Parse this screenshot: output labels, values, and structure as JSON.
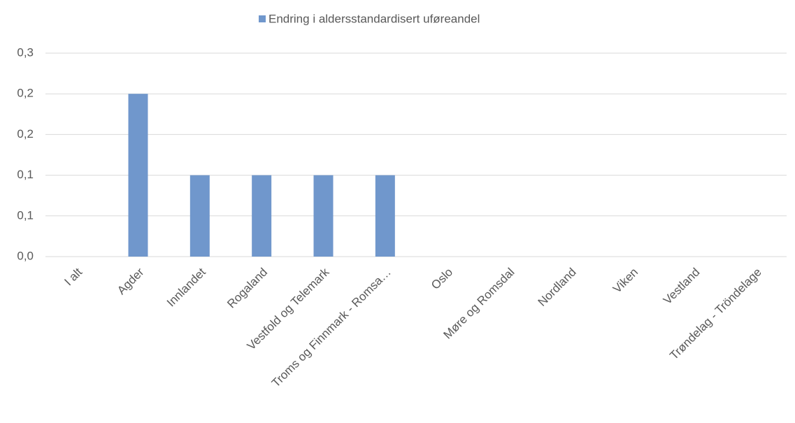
{
  "chart_data": {
    "type": "bar",
    "categories": [
      "I alt",
      "Agder",
      "Innlandet",
      "Rogaland",
      "Vestfold og Telemark",
      "Troms og Finnmark - Romsa…",
      "Oslo",
      "Møre og Romsdal",
      "Nordland",
      "Viken",
      "Vestland",
      "Trøndelag - Tröndelage"
    ],
    "series": [
      {
        "name": "Endring i aldersstandardisert uføreandel",
        "color": "#7097cc",
        "values": [
          0,
          0.2,
          0.1,
          0.1,
          0.1,
          0.1,
          0,
          0,
          0,
          0,
          0,
          0
        ]
      }
    ],
    "ylim": [
      0,
      0.25
    ],
    "yticks": [
      {
        "value": 0,
        "label": "0,0"
      },
      {
        "value": 0.05,
        "label": "0,1"
      },
      {
        "value": 0.1,
        "label": "0,1"
      },
      {
        "value": 0.15,
        "label": "0,2"
      },
      {
        "value": 0.2,
        "label": "0,2"
      },
      {
        "value": 0.25,
        "label": "0,3"
      }
    ],
    "grid": true,
    "legend": "top"
  }
}
